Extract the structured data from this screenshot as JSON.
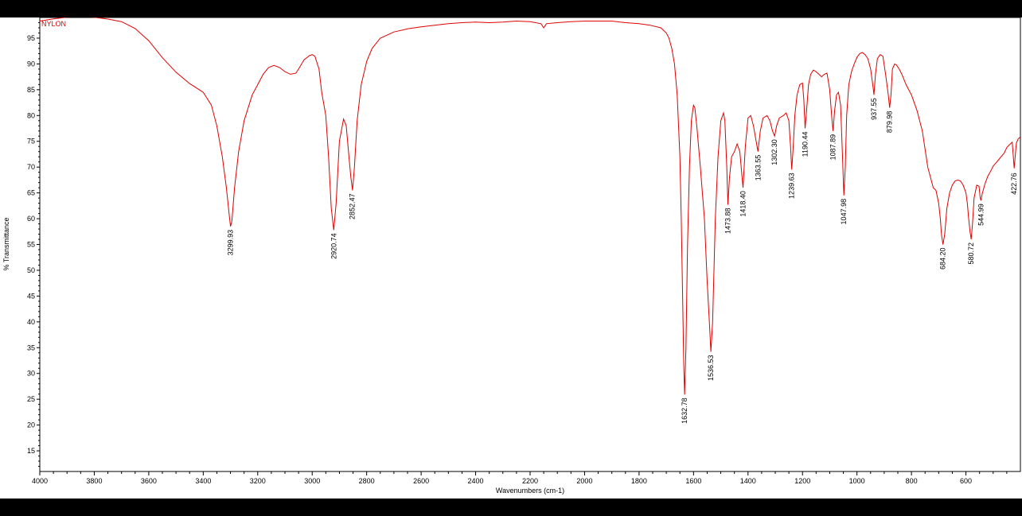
{
  "chart_data": {
    "type": "line",
    "title": "",
    "sample_label": "NYLON",
    "xlabel": "Wavenumbers (cm-1)",
    "ylabel": "% Transmittance",
    "xlim": [
      4000,
      400
    ],
    "ylim": [
      11,
      99
    ],
    "x_reversed": true,
    "grid": false,
    "line_color": "#e00000",
    "xticks": [
      4000,
      3800,
      3600,
      3400,
      3200,
      3000,
      2800,
      2600,
      2400,
      2200,
      2000,
      1800,
      1600,
      1400,
      1200,
      1000,
      800,
      600
    ],
    "yticks": [
      15,
      20,
      25,
      30,
      35,
      40,
      45,
      50,
      55,
      60,
      65,
      70,
      75,
      80,
      85,
      90,
      95
    ],
    "peak_labels": [
      {
        "text": "3299.93",
        "x": 3299.93,
        "y": 58.5
      },
      {
        "text": "2920.74",
        "x": 2920.74,
        "y": 57.8
      },
      {
        "text": "2852.47",
        "x": 2852.47,
        "y": 65.5
      },
      {
        "text": "1632.78",
        "x": 1632.78,
        "y": 25.9
      },
      {
        "text": "1536.53",
        "x": 1536.53,
        "y": 34.2
      },
      {
        "text": "1473.88",
        "x": 1473.88,
        "y": 62.7
      },
      {
        "text": "1418.40",
        "x": 1418.4,
        "y": 66.0
      },
      {
        "text": "1363.55",
        "x": 1363.55,
        "y": 73.0
      },
      {
        "text": "1302.30",
        "x": 1302.3,
        "y": 76.0
      },
      {
        "text": "1239.63",
        "x": 1239.63,
        "y": 69.5
      },
      {
        "text": "1190.44",
        "x": 1190.44,
        "y": 77.5
      },
      {
        "text": "1087.89",
        "x": 1087.89,
        "y": 77.0
      },
      {
        "text": "1047.98",
        "x": 1047.98,
        "y": 64.5
      },
      {
        "text": "937.55",
        "x": 937.55,
        "y": 84.0
      },
      {
        "text": "879.98",
        "x": 879.98,
        "y": 81.5
      },
      {
        "text": "684.20",
        "x": 684.2,
        "y": 55.0
      },
      {
        "text": "580.72",
        "x": 580.72,
        "y": 56.0
      },
      {
        "text": "544.99",
        "x": 544.99,
        "y": 63.5
      },
      {
        "text": "422.76",
        "x": 422.76,
        "y": 69.5
      }
    ],
    "series": [
      {
        "x": [
          4000,
          3950,
          3900,
          3850,
          3800,
          3750,
          3700,
          3650,
          3600,
          3550,
          3500,
          3450,
          3400,
          3370,
          3350,
          3330,
          3315,
          3305,
          3300,
          3295,
          3285,
          3270,
          3250,
          3220,
          3200,
          3180,
          3160,
          3140,
          3120,
          3100,
          3080,
          3060,
          3050,
          3030,
          3010,
          3000,
          2990,
          2975,
          2965,
          2950,
          2940,
          2930,
          2921,
          2912,
          2900,
          2885,
          2875,
          2865,
          2858,
          2852,
          2845,
          2835,
          2820,
          2800,
          2780,
          2750,
          2700,
          2650,
          2600,
          2550,
          2500,
          2450,
          2400,
          2350,
          2300,
          2250,
          2200,
          2160,
          2150,
          2140,
          2100,
          2050,
          2000,
          1950,
          1900,
          1850,
          1800,
          1760,
          1720,
          1700,
          1690,
          1680,
          1670,
          1660,
          1650,
          1645,
          1640,
          1636,
          1632.78,
          1628,
          1622,
          1615,
          1608,
          1600,
          1595,
          1588,
          1575,
          1560,
          1550,
          1540,
          1536.53,
          1530,
          1520,
          1510,
          1500,
          1490,
          1485,
          1478,
          1473.88,
          1468,
          1460,
          1450,
          1440,
          1430,
          1420,
          1418.4,
          1410,
          1400,
          1390,
          1380,
          1370,
          1363.55,
          1355,
          1345,
          1330,
          1320,
          1310,
          1302.3,
          1295,
          1285,
          1270,
          1260,
          1250,
          1244,
          1239.63,
          1235,
          1228,
          1220,
          1210,
          1200,
          1195,
          1190.44,
          1185,
          1178,
          1170,
          1160,
          1150,
          1140,
          1130,
          1120,
          1110,
          1100,
          1093,
          1087.89,
          1082,
          1075,
          1068,
          1060,
          1053,
          1047.98,
          1043,
          1038,
          1030,
          1020,
          1010,
          1000,
          990,
          980,
          970,
          960,
          950,
          942,
          937.55,
          932,
          925,
          915,
          905,
          895,
          885,
          879.98,
          875,
          870,
          862,
          855,
          845,
          835,
          820,
          800,
          780,
          760,
          740,
          720,
          710,
          700,
          694,
          690,
          684.2,
          678,
          670,
          660,
          650,
          640,
          630,
          620,
          610,
          600,
          595,
          590,
          585,
          580.72,
          576,
          570,
          560,
          552,
          548,
          544.99,
          540,
          530,
          520,
          510,
          500,
          490,
          480,
          470,
          460,
          450,
          440,
          430,
          422.76,
          415,
          408,
          400
        ],
        "y": [
          98.3,
          98.6,
          98.8,
          98.8,
          98.7,
          98.4,
          98.0,
          96.8,
          94.5,
          91.2,
          88.4,
          86.2,
          84.5,
          82.0,
          78.0,
          72.0,
          66.0,
          61.0,
          58.5,
          59.5,
          66.0,
          73.0,
          79.0,
          84.0,
          86.0,
          88.0,
          89.3,
          89.7,
          89.3,
          88.5,
          88.0,
          88.2,
          89.0,
          90.8,
          91.6,
          91.8,
          91.5,
          89.0,
          84.5,
          80.0,
          72.0,
          62.0,
          57.8,
          63.0,
          75.0,
          79.3,
          78.0,
          72.0,
          68.0,
          65.5,
          70.0,
          79.0,
          86.0,
          90.5,
          93.0,
          95.0,
          96.2,
          96.8,
          97.2,
          97.5,
          97.8,
          98.0,
          98.1,
          98.0,
          98.1,
          98.3,
          98.2,
          97.8,
          97.0,
          97.8,
          98.0,
          98.2,
          98.3,
          98.3,
          98.3,
          98.0,
          97.8,
          97.5,
          97.0,
          96.0,
          95.0,
          93.0,
          90.0,
          84.0,
          72.0,
          60.0,
          45.0,
          32.0,
          25.9,
          35.0,
          55.0,
          70.0,
          79.0,
          82.0,
          81.5,
          78.0,
          70.0,
          60.0,
          48.0,
          38.0,
          34.2,
          40.0,
          60.0,
          72.0,
          79.0,
          80.5,
          79.0,
          70.0,
          62.7,
          68.0,
          72.0,
          73.0,
          74.5,
          73.0,
          67.0,
          66.0,
          74.0,
          79.5,
          80.0,
          78.0,
          75.0,
          73.0,
          77.0,
          79.5,
          80.0,
          79.0,
          77.0,
          76.0,
          78.0,
          79.5,
          80.0,
          80.5,
          79.0,
          74.0,
          69.5,
          73.0,
          80.0,
          84.0,
          86.0,
          86.3,
          83.0,
          77.5,
          81.0,
          86.0,
          88.0,
          88.8,
          88.5,
          88.0,
          87.5,
          88.0,
          88.2,
          85.0,
          80.0,
          77.0,
          81.0,
          84.0,
          84.5,
          82.0,
          72.0,
          64.5,
          70.0,
          80.0,
          86.0,
          88.5,
          90.0,
          91.3,
          92.0,
          92.2,
          91.8,
          91.0,
          89.0,
          86.0,
          84.0,
          88.0,
          91.0,
          91.8,
          91.5,
          88.0,
          84.0,
          81.5,
          84.0,
          89.0,
          90.0,
          89.8,
          89.0,
          88.0,
          86.0,
          84.0,
          81.0,
          77.0,
          70.0,
          66.0,
          65.5,
          63.0,
          60.0,
          57.0,
          55.0,
          57.0,
          62.0,
          65.0,
          66.5,
          67.3,
          67.5,
          67.3,
          66.5,
          65.0,
          63.0,
          60.0,
          57.5,
          56.0,
          59.0,
          64.0,
          66.5,
          66.0,
          64.0,
          63.5,
          65.0,
          67.0,
          68.5,
          69.5,
          70.5,
          71.0,
          71.5,
          72.0,
          72.5,
          73.5,
          74.0,
          74.5,
          69.5,
          74.5,
          75.5,
          76.0
        ]
      }
    ]
  }
}
